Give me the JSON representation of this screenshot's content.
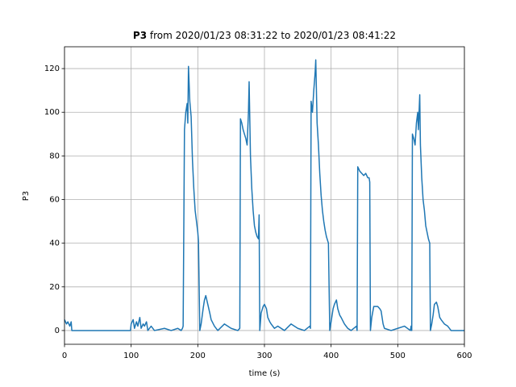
{
  "chart_data": {
    "type": "line",
    "title_bold": "P3",
    "title": "from 2020/01/23 08:31:22 to 2020/01/23 08:41:22",
    "x_label": "time (s)",
    "y_label": "P3",
    "x": [
      0,
      3,
      5,
      8,
      10,
      11,
      50,
      99,
      100,
      103,
      105,
      108,
      110,
      113,
      115,
      118,
      120,
      123,
      125,
      130,
      135,
      150,
      160,
      170,
      175,
      177,
      178,
      180,
      182,
      184,
      185,
      186,
      188,
      190,
      192,
      194,
      196,
      198,
      200,
      201,
      203,
      205,
      208,
      210,
      212,
      215,
      218,
      220,
      225,
      230,
      240,
      250,
      260,
      263,
      264,
      266,
      268,
      270,
      272,
      274,
      276,
      277,
      279,
      281,
      283,
      285,
      287,
      289,
      291,
      292,
      293,
      295,
      298,
      300,
      303,
      305,
      308,
      310,
      315,
      320,
      330,
      340,
      350,
      360,
      368,
      369,
      370,
      372,
      374,
      376,
      377,
      379,
      381,
      383,
      385,
      387,
      389,
      391,
      393,
      395,
      396,
      398,
      400,
      403,
      405,
      408,
      410,
      413,
      415,
      420,
      425,
      430,
      438,
      439,
      440,
      443,
      446,
      449,
      452,
      455,
      457,
      458,
      459,
      461,
      464,
      467,
      470,
      473,
      475,
      478,
      480,
      490,
      500,
      510,
      519,
      520,
      521,
      522,
      524,
      526,
      528,
      530,
      531,
      533,
      534,
      536,
      538,
      540,
      542,
      544,
      546,
      548,
      549,
      551,
      553,
      555,
      558,
      560,
      563,
      565,
      570,
      575,
      580,
      590,
      600
    ],
    "series": [
      {
        "name": "P3",
        "color": "#1f77b4",
        "values": [
          5,
          3,
          4,
          2,
          4,
          0,
          0,
          0,
          3,
          5,
          1,
          4,
          2,
          6,
          1,
          3,
          2,
          4,
          0,
          2,
          0,
          1,
          0,
          1,
          0,
          1,
          2,
          92,
          100,
          104,
          95,
          121,
          105,
          98,
          78,
          65,
          55,
          50,
          45,
          41,
          0,
          3,
          10,
          14,
          16,
          12,
          8,
          5,
          2,
          0,
          3,
          1,
          0,
          1,
          97,
          95,
          92,
          90,
          88,
          85,
          100,
          114,
          80,
          65,
          55,
          48,
          45,
          43,
          42,
          53,
          0,
          8,
          11,
          12,
          10,
          6,
          4,
          3,
          1,
          2,
          0,
          3,
          1,
          0,
          2,
          1,
          105,
          100,
          110,
          118,
          124,
          95,
          85,
          72,
          62,
          55,
          50,
          46,
          43,
          41,
          40,
          0,
          4,
          10,
          12,
          14,
          10,
          7,
          6,
          3,
          1,
          0,
          2,
          0,
          75,
          73,
          72,
          71,
          72,
          70,
          70,
          68,
          0,
          6,
          11,
          11,
          11,
          10,
          9,
          3,
          1,
          0,
          1,
          2,
          0,
          2,
          0,
          90,
          88,
          85,
          95,
          100,
          92,
          108,
          85,
          70,
          60,
          55,
          48,
          45,
          42,
          40,
          0,
          3,
          7,
          12,
          13,
          11,
          6,
          5,
          3,
          2,
          0,
          0,
          0
        ]
      }
    ],
    "xlim": [
      0,
      600
    ],
    "ylim": [
      -6.3,
      130
    ],
    "xticks": [
      0,
      100,
      200,
      300,
      400,
      500,
      600
    ],
    "yticks": [
      0,
      20,
      40,
      60,
      80,
      100,
      120
    ],
    "grid": true
  }
}
